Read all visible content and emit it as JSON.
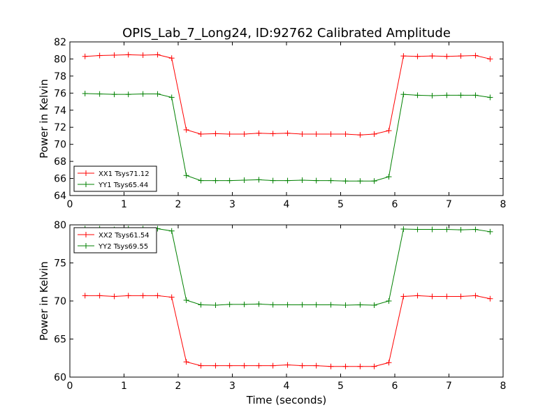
{
  "title": "OPIS_Lab_7_Long24, ID:92762 Calibrated Amplitude",
  "xlabel": "Time (seconds)",
  "chart_data": [
    {
      "type": "line",
      "title": "OPIS_Lab_7_Long24, ID:92762 Calibrated Amplitude",
      "xlabel": "",
      "ylabel": "Power in Kelvin",
      "xlim": [
        0,
        8
      ],
      "ylim": [
        64,
        82
      ],
      "xticks": [
        0,
        1,
        2,
        3,
        4,
        5,
        6,
        7,
        8
      ],
      "yticks": [
        64,
        66,
        68,
        70,
        72,
        74,
        76,
        78,
        80,
        82
      ],
      "grid": false,
      "legend_position": "lower-left",
      "x": [
        0.28,
        0.55,
        0.82,
        1.08,
        1.35,
        1.62,
        1.88,
        2.15,
        2.42,
        2.69,
        2.95,
        3.22,
        3.49,
        3.75,
        4.02,
        4.29,
        4.55,
        4.82,
        5.09,
        5.36,
        5.62,
        5.89,
        6.16,
        6.42,
        6.69,
        6.96,
        7.22,
        7.49,
        7.76
      ],
      "series": [
        {
          "name": "XX1 Tsys71.12",
          "color": "#ff0000",
          "values": [
            80.3,
            80.4,
            80.45,
            80.5,
            80.45,
            80.5,
            80.1,
            71.7,
            71.2,
            71.25,
            71.2,
            71.2,
            71.3,
            71.25,
            71.3,
            71.2,
            71.2,
            71.2,
            71.2,
            71.1,
            71.2,
            71.6,
            80.35,
            80.3,
            80.35,
            80.3,
            80.35,
            80.4,
            80.0
          ]
        },
        {
          "name": "YY1 Tsys65.44",
          "color": "#008000",
          "values": [
            75.95,
            75.9,
            75.85,
            75.85,
            75.9,
            75.9,
            75.5,
            66.35,
            65.75,
            65.75,
            65.75,
            65.8,
            65.85,
            65.75,
            65.75,
            65.8,
            65.75,
            65.75,
            65.7,
            65.7,
            65.7,
            66.2,
            75.85,
            75.75,
            75.7,
            75.75,
            75.75,
            75.75,
            75.5
          ]
        }
      ]
    },
    {
      "type": "line",
      "title": "",
      "xlabel": "Time (seconds)",
      "ylabel": "Power in Kelvin",
      "xlim": [
        0,
        8
      ],
      "ylim": [
        60,
        80
      ],
      "xticks": [
        0,
        1,
        2,
        3,
        4,
        5,
        6,
        7,
        8
      ],
      "yticks": [
        60,
        65,
        70,
        75,
        80
      ],
      "grid": false,
      "legend_position": "upper-left",
      "x": [
        0.28,
        0.55,
        0.82,
        1.08,
        1.35,
        1.62,
        1.88,
        2.15,
        2.42,
        2.69,
        2.95,
        3.22,
        3.49,
        3.75,
        4.02,
        4.29,
        4.55,
        4.82,
        5.09,
        5.36,
        5.62,
        5.89,
        6.16,
        6.42,
        6.69,
        6.96,
        7.22,
        7.49,
        7.76
      ],
      "series": [
        {
          "name": "XX2 Tsys61.54",
          "color": "#ff0000",
          "values": [
            70.7,
            70.7,
            70.6,
            70.7,
            70.7,
            70.7,
            70.5,
            62.0,
            61.5,
            61.5,
            61.5,
            61.5,
            61.5,
            61.5,
            61.6,
            61.5,
            61.5,
            61.4,
            61.4,
            61.4,
            61.4,
            61.9,
            70.6,
            70.7,
            70.6,
            70.6,
            70.6,
            70.7,
            70.3
          ]
        },
        {
          "name": "YY2 Tsys69.55",
          "color": "#008000",
          "values": [
            79.5,
            79.5,
            79.4,
            79.5,
            79.5,
            79.5,
            79.2,
            70.1,
            69.5,
            69.45,
            69.55,
            69.55,
            69.6,
            69.5,
            69.5,
            69.5,
            69.5,
            69.5,
            69.45,
            69.5,
            69.45,
            70.0,
            79.45,
            79.4,
            79.4,
            79.4,
            79.35,
            79.4,
            79.1
          ]
        }
      ]
    }
  ]
}
